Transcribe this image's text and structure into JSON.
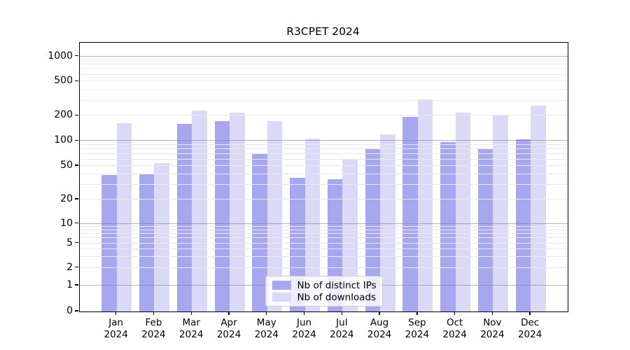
{
  "chart_data": {
    "type": "bar",
    "title": "R3CPET 2024",
    "months": [
      "Jan",
      "Feb",
      "Mar",
      "Apr",
      "May",
      "Jun",
      "Jul",
      "Aug",
      "Sep",
      "Oct",
      "Nov",
      "Dec"
    ],
    "year": "2024",
    "categories": [
      "Jan 2024",
      "Feb 2024",
      "Mar 2024",
      "Apr 2024",
      "May 2024",
      "Jun 2024",
      "Jul 2024",
      "Aug 2024",
      "Sep 2024",
      "Oct 2024",
      "Nov 2024",
      "Dec 2024"
    ],
    "series": [
      {
        "name": "Nb of distinct IPs",
        "color": "#a7a7f0",
        "values": [
          39,
          40,
          160,
          172,
          69,
          36,
          35,
          81,
          193,
          97,
          80,
          105
        ]
      },
      {
        "name": "Nb of downloads",
        "color": "#dadaf8",
        "values": [
          162,
          54,
          228,
          218,
          172,
          106,
          60,
          120,
          310,
          215,
          205,
          260
        ]
      }
    ],
    "yscale": "log-with-zero",
    "yticks": [
      0,
      1,
      2,
      5,
      10,
      20,
      50,
      100,
      200,
      500,
      1000
    ],
    "ylim": [
      0,
      1200
    ],
    "grid": true,
    "legend_position": "bottom-center"
  },
  "colors": {
    "ip_bar": "#a7a7f0",
    "downloads_bar": "#dadaf8",
    "major_gridline": "rgba(120,120,120,0.55)",
    "minor_gridline": "#e9e9e9",
    "spine": "#000000",
    "legend_border": "#cccccc"
  }
}
